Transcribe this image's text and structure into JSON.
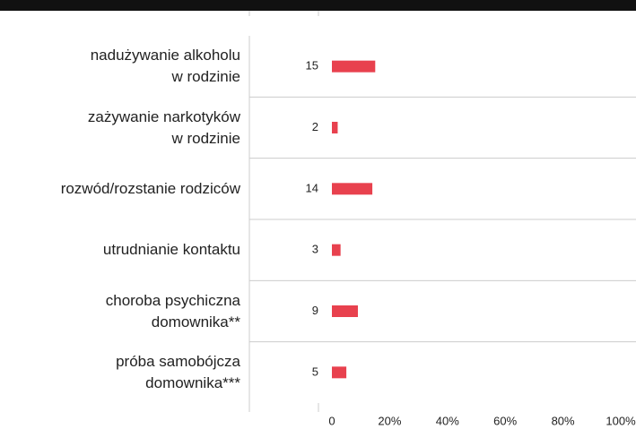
{
  "chart_data": {
    "type": "barh",
    "categories": [
      "nadużywanie alkoholu\nw rodzinie",
      "zażywanie narkotyków\nw rodzinie",
      "rozwód/rozstanie rodziców",
      "utrudnianie kontaktu",
      "choroba psychiczna\ndomownika**",
      "próba samobójcza\ndomownika***"
    ],
    "values": [
      15,
      2,
      14,
      3,
      9,
      5
    ],
    "color": "#e8414e",
    "xlim": [
      0,
      100
    ],
    "xticks": [
      0,
      {
        "value": 20,
        "label": "20%"
      },
      {
        "value": 40,
        "label": "40%"
      },
      {
        "value": 60,
        "label": "60%"
      },
      {
        "value": 80,
        "label": "80%"
      },
      {
        "value": 100,
        "label": "100%"
      }
    ]
  }
}
